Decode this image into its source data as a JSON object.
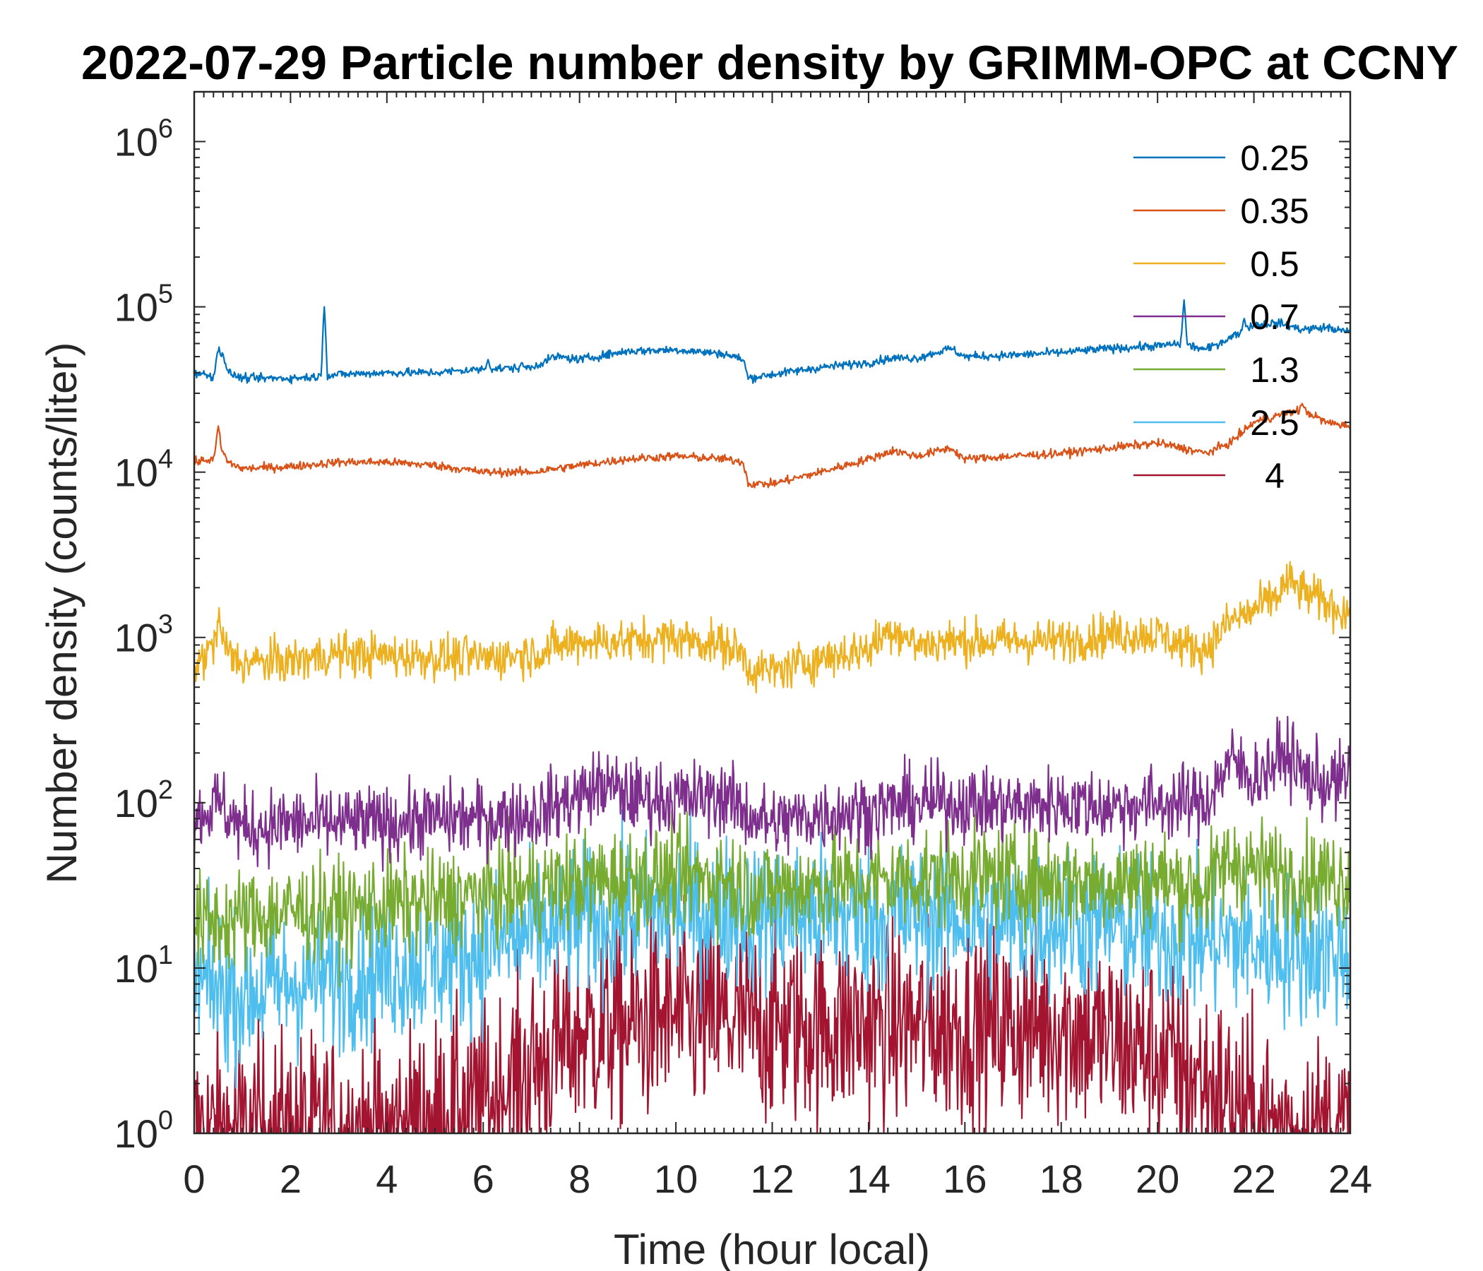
{
  "chart_data": {
    "type": "line",
    "title": "2022-07-29 Particle number density by GRIMM-OPC at CCNY",
    "xlabel": "Time (hour local)",
    "ylabel": "Number density (counts/liter)",
    "xlim": [
      0,
      24
    ],
    "ylim": [
      1,
      2000000
    ],
    "yscale": "log",
    "xticks": [
      0,
      2,
      4,
      6,
      8,
      10,
      12,
      14,
      16,
      18,
      20,
      22,
      24
    ],
    "yticks": [
      {
        "base": "10",
        "exp": "0",
        "value": 1
      },
      {
        "base": "10",
        "exp": "1",
        "value": 10
      },
      {
        "base": "10",
        "exp": "2",
        "value": 100
      },
      {
        "base": "10",
        "exp": "3",
        "value": 1000
      },
      {
        "base": "10",
        "exp": "4",
        "value": 10000
      },
      {
        "base": "10",
        "exp": "5",
        "value": 100000
      },
      {
        "base": "10",
        "exp": "6",
        "value": 1000000
      }
    ],
    "legend_position": "top-right",
    "series": [
      {
        "name": "0.25",
        "color": "#0072BD",
        "x": [
          0,
          0.4,
          0.5,
          0.6,
          0.7,
          1,
          2,
          2.7,
          3,
          4,
          5,
          6,
          7,
          7.5,
          8,
          9,
          10,
          11,
          11.4,
          11.5,
          12,
          13,
          14,
          14.5,
          15,
          15.7,
          16,
          17,
          18,
          19,
          20,
          20.5,
          21,
          21.5,
          22,
          22.5,
          23,
          23.5,
          24
        ],
        "y": [
          40000,
          38000,
          55000,
          52000,
          40000,
          37000,
          37000,
          38000,
          39000,
          40000,
          40000,
          42000,
          43000,
          50000,
          48000,
          54000,
          55000,
          52000,
          48000,
          37000,
          39000,
          43000,
          46000,
          49000,
          49000,
          56000,
          50000,
          51000,
          53000,
          56000,
          58000,
          60000,
          55000,
          65000,
          78000,
          80000,
          73000,
          75000,
          70000
        ],
        "spikes": [
          {
            "x": 2.7,
            "y": 100000
          },
          {
            "x": 20.55,
            "y": 110000
          },
          {
            "x": 6.1,
            "y": 48000
          },
          {
            "x": 6.8,
            "y": 46000
          },
          {
            "x": 21.8,
            "y": 85000
          }
        ]
      },
      {
        "name": "0.35",
        "color": "#D95319",
        "x": [
          0,
          0.4,
          0.5,
          0.7,
          1,
          2,
          3,
          4,
          5,
          6,
          7,
          8,
          9,
          10,
          11,
          11.4,
          11.5,
          12,
          13,
          14,
          14.5,
          15,
          15.7,
          16,
          17,
          18,
          19,
          20,
          20.5,
          21,
          21.5,
          22,
          22.5,
          23,
          23.5,
          24
        ],
        "y": [
          11500,
          12000,
          15000,
          11500,
          10500,
          10800,
          11500,
          11500,
          11000,
          10000,
          10000,
          11000,
          12000,
          12500,
          12000,
          11500,
          8500,
          8500,
          10000,
          12000,
          13500,
          12500,
          14000,
          12000,
          12500,
          13000,
          14000,
          15000,
          14000,
          13000,
          15000,
          20000,
          22000,
          24000,
          20000,
          19000
        ],
        "spikes": [
          {
            "x": 0.5,
            "y": 19000
          },
          {
            "x": 23.0,
            "y": 26000
          }
        ]
      },
      {
        "name": "0.5",
        "color": "#EDB120",
        "x": [
          0,
          0.4,
          0.5,
          0.7,
          1,
          2,
          3,
          4,
          5,
          6,
          7,
          8,
          9,
          10,
          11,
          11.4,
          11.5,
          12,
          13,
          14,
          14.5,
          15,
          15.7,
          16,
          17,
          18,
          19,
          20,
          20.5,
          21,
          21.5,
          22,
          22.5,
          22.7,
          23,
          23.5,
          24
        ],
        "y": [
          650,
          900,
          1200,
          800,
          700,
          720,
          800,
          780,
          760,
          750,
          800,
          950,
          950,
          1000,
          900,
          800,
          650,
          620,
          750,
          850,
          1150,
          900,
          950,
          950,
          950,
          950,
          1050,
          1050,
          900,
          850,
          1250,
          1450,
          1800,
          2200,
          1900,
          1600,
          1400
        ],
        "noise": 0.13
      },
      {
        "name": "0.7",
        "color": "#7E2F8E",
        "x": [
          0,
          0.5,
          1,
          2,
          3,
          4,
          5,
          6,
          7,
          8,
          8.5,
          9,
          10,
          11,
          11.5,
          12,
          13,
          14,
          15,
          16,
          17,
          18,
          19,
          20,
          21,
          21.5,
          22,
          22.7,
          23,
          23.5,
          24
        ],
        "y": [
          80,
          100,
          70,
          75,
          75,
          75,
          80,
          80,
          85,
          110,
          130,
          110,
          105,
          110,
          85,
          75,
          85,
          90,
          100,
          100,
          95,
          100,
          95,
          100,
          100,
          180,
          140,
          200,
          150,
          130,
          140
        ],
        "noise": 0.22
      },
      {
        "name": "1.3",
        "color": "#77AC30",
        "x": [
          0,
          1,
          2,
          3,
          4,
          5,
          6,
          7,
          8,
          9,
          10,
          11,
          11.5,
          12,
          13,
          14,
          15,
          16,
          17,
          18,
          19,
          20,
          21,
          21.5,
          22,
          23,
          24
        ],
        "y": [
          18,
          20,
          22,
          22,
          24,
          25,
          28,
          30,
          33,
          35,
          35,
          35,
          30,
          30,
          32,
          33,
          35,
          36,
          35,
          34,
          33,
          35,
          30,
          45,
          40,
          35,
          35
        ],
        "noise": 0.3
      },
      {
        "name": "2.5",
        "color": "#4DBEEE",
        "x": [
          0,
          1,
          2,
          3,
          4,
          5,
          6,
          7,
          8,
          9,
          10,
          11,
          12,
          13,
          14,
          15,
          16,
          17,
          18,
          19,
          20,
          21,
          22,
          23,
          24
        ],
        "y": [
          8,
          7,
          8,
          9,
          10,
          11,
          13,
          16,
          19,
          21,
          22,
          22,
          20,
          21,
          20,
          21,
          20,
          19,
          19,
          18,
          16,
          15,
          14,
          13,
          12
        ],
        "noise": 0.45
      },
      {
        "name": "4",
        "color": "#A2142F",
        "x": [
          0,
          2,
          4,
          6,
          7,
          8,
          10,
          12,
          14,
          16,
          18,
          20,
          21,
          22,
          23,
          24
        ],
        "y": [
          1,
          1,
          1,
          1.5,
          2.5,
          4,
          5,
          4.5,
          4.5,
          4.5,
          4.5,
          3,
          2,
          1.2,
          1,
          1
        ],
        "noise": 0.6
      }
    ]
  }
}
